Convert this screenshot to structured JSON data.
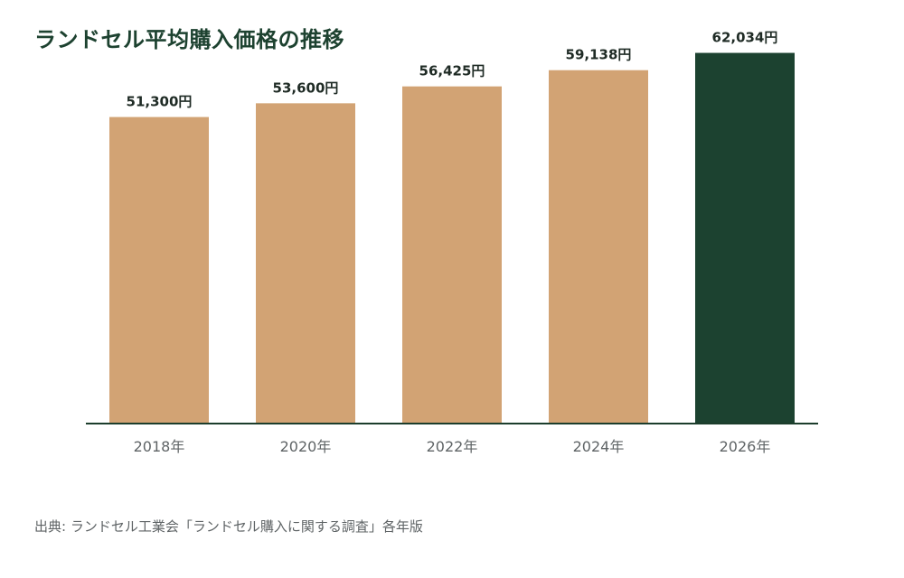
{
  "chart_data": {
    "type": "bar",
    "title": "ランドセル平均購入価格の推移",
    "categories": [
      "2018年",
      "2020年",
      "2022年",
      "2024年",
      "2026年"
    ],
    "values": [
      51300,
      53600,
      56425,
      59138,
      62034
    ],
    "value_labels": [
      "51,300円",
      "53,600円",
      "56,425円",
      "59,138円",
      "62,034円"
    ],
    "ylim": [
      0,
      66500
    ],
    "grid": false,
    "legend": "none",
    "colors": {
      "default_bar": "#d2a374",
      "highlight_bar": "#1c4230",
      "axis": "#1c3d2c"
    },
    "highlight_index": 4
  },
  "source": "出典: ランドセル工業会「ランドセル購入に関する調査」各年版"
}
